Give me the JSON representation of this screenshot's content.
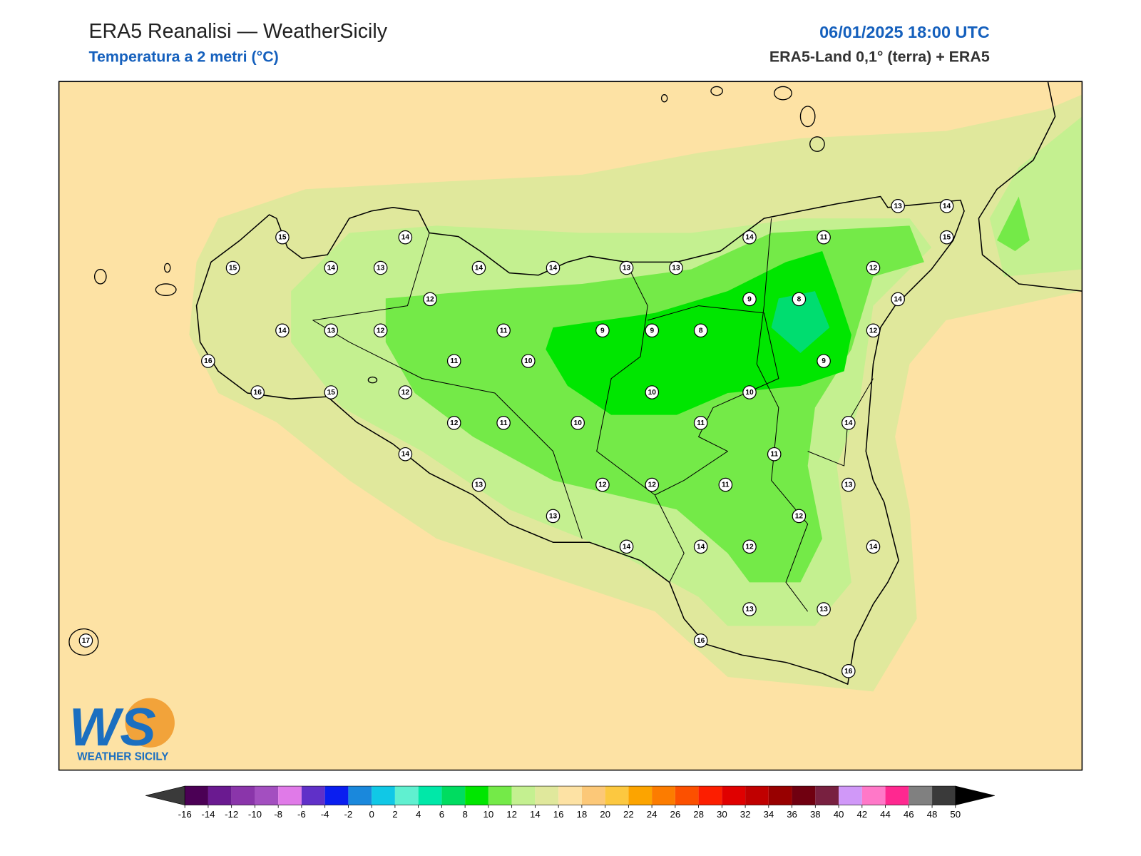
{
  "header": {
    "title": "ERA5 Reanalisi — WeatherSicily",
    "subtitle": "Temperatura a 2 metri (°C)",
    "datetime": "06/01/2025 18:00 UTC",
    "source": "ERA5-Land 0,1° (terra) + ERA5"
  },
  "map": {
    "station_values": [
      15,
      14,
      15,
      14,
      13,
      14,
      14,
      13,
      13,
      14,
      11,
      13,
      14,
      15,
      12,
      12,
      9,
      8,
      14,
      14,
      13,
      12,
      11,
      9,
      9,
      8,
      12,
      16,
      11,
      10,
      9,
      16,
      15,
      12,
      10,
      10,
      12,
      11,
      10,
      11,
      14,
      14,
      11,
      13,
      12,
      12,
      11,
      13,
      13,
      12,
      14,
      14,
      12,
      14,
      13,
      13,
      17,
      16,
      16
    ]
  },
  "colorbar": {
    "ticks": [
      -16,
      -14,
      -12,
      -10,
      -8,
      -6,
      -4,
      -2,
      0,
      2,
      4,
      6,
      8,
      10,
      12,
      14,
      16,
      18,
      20,
      22,
      24,
      26,
      28,
      30,
      32,
      34,
      36,
      38,
      40,
      42,
      44,
      46,
      48,
      50
    ],
    "colors": [
      "#4b0055",
      "#6a1a90",
      "#8a35aa",
      "#a34fc0",
      "#e07ae8",
      "#6030c8",
      "#0a1ef0",
      "#1a88dc",
      "#10c8e6",
      "#60f0d0",
      "#00e8a8",
      "#00dc60",
      "#00e600",
      "#74ea48",
      "#c4f090",
      "#e0e89c",
      "#fde2a4",
      "#fcc878",
      "#fcc840",
      "#fca400",
      "#fc7c00",
      "#fc5000",
      "#fc1e00",
      "#e00000",
      "#c00000",
      "#980000",
      "#700010",
      "#782040",
      "#d098f8",
      "#ff78c8",
      "#ff2890",
      "#808080",
      "#3a3a3a"
    ],
    "under_color": "#3a3a3a",
    "over_color": "#000000"
  },
  "logo": {
    "mark": "WS",
    "name": "WEATHER SICILY"
  }
}
